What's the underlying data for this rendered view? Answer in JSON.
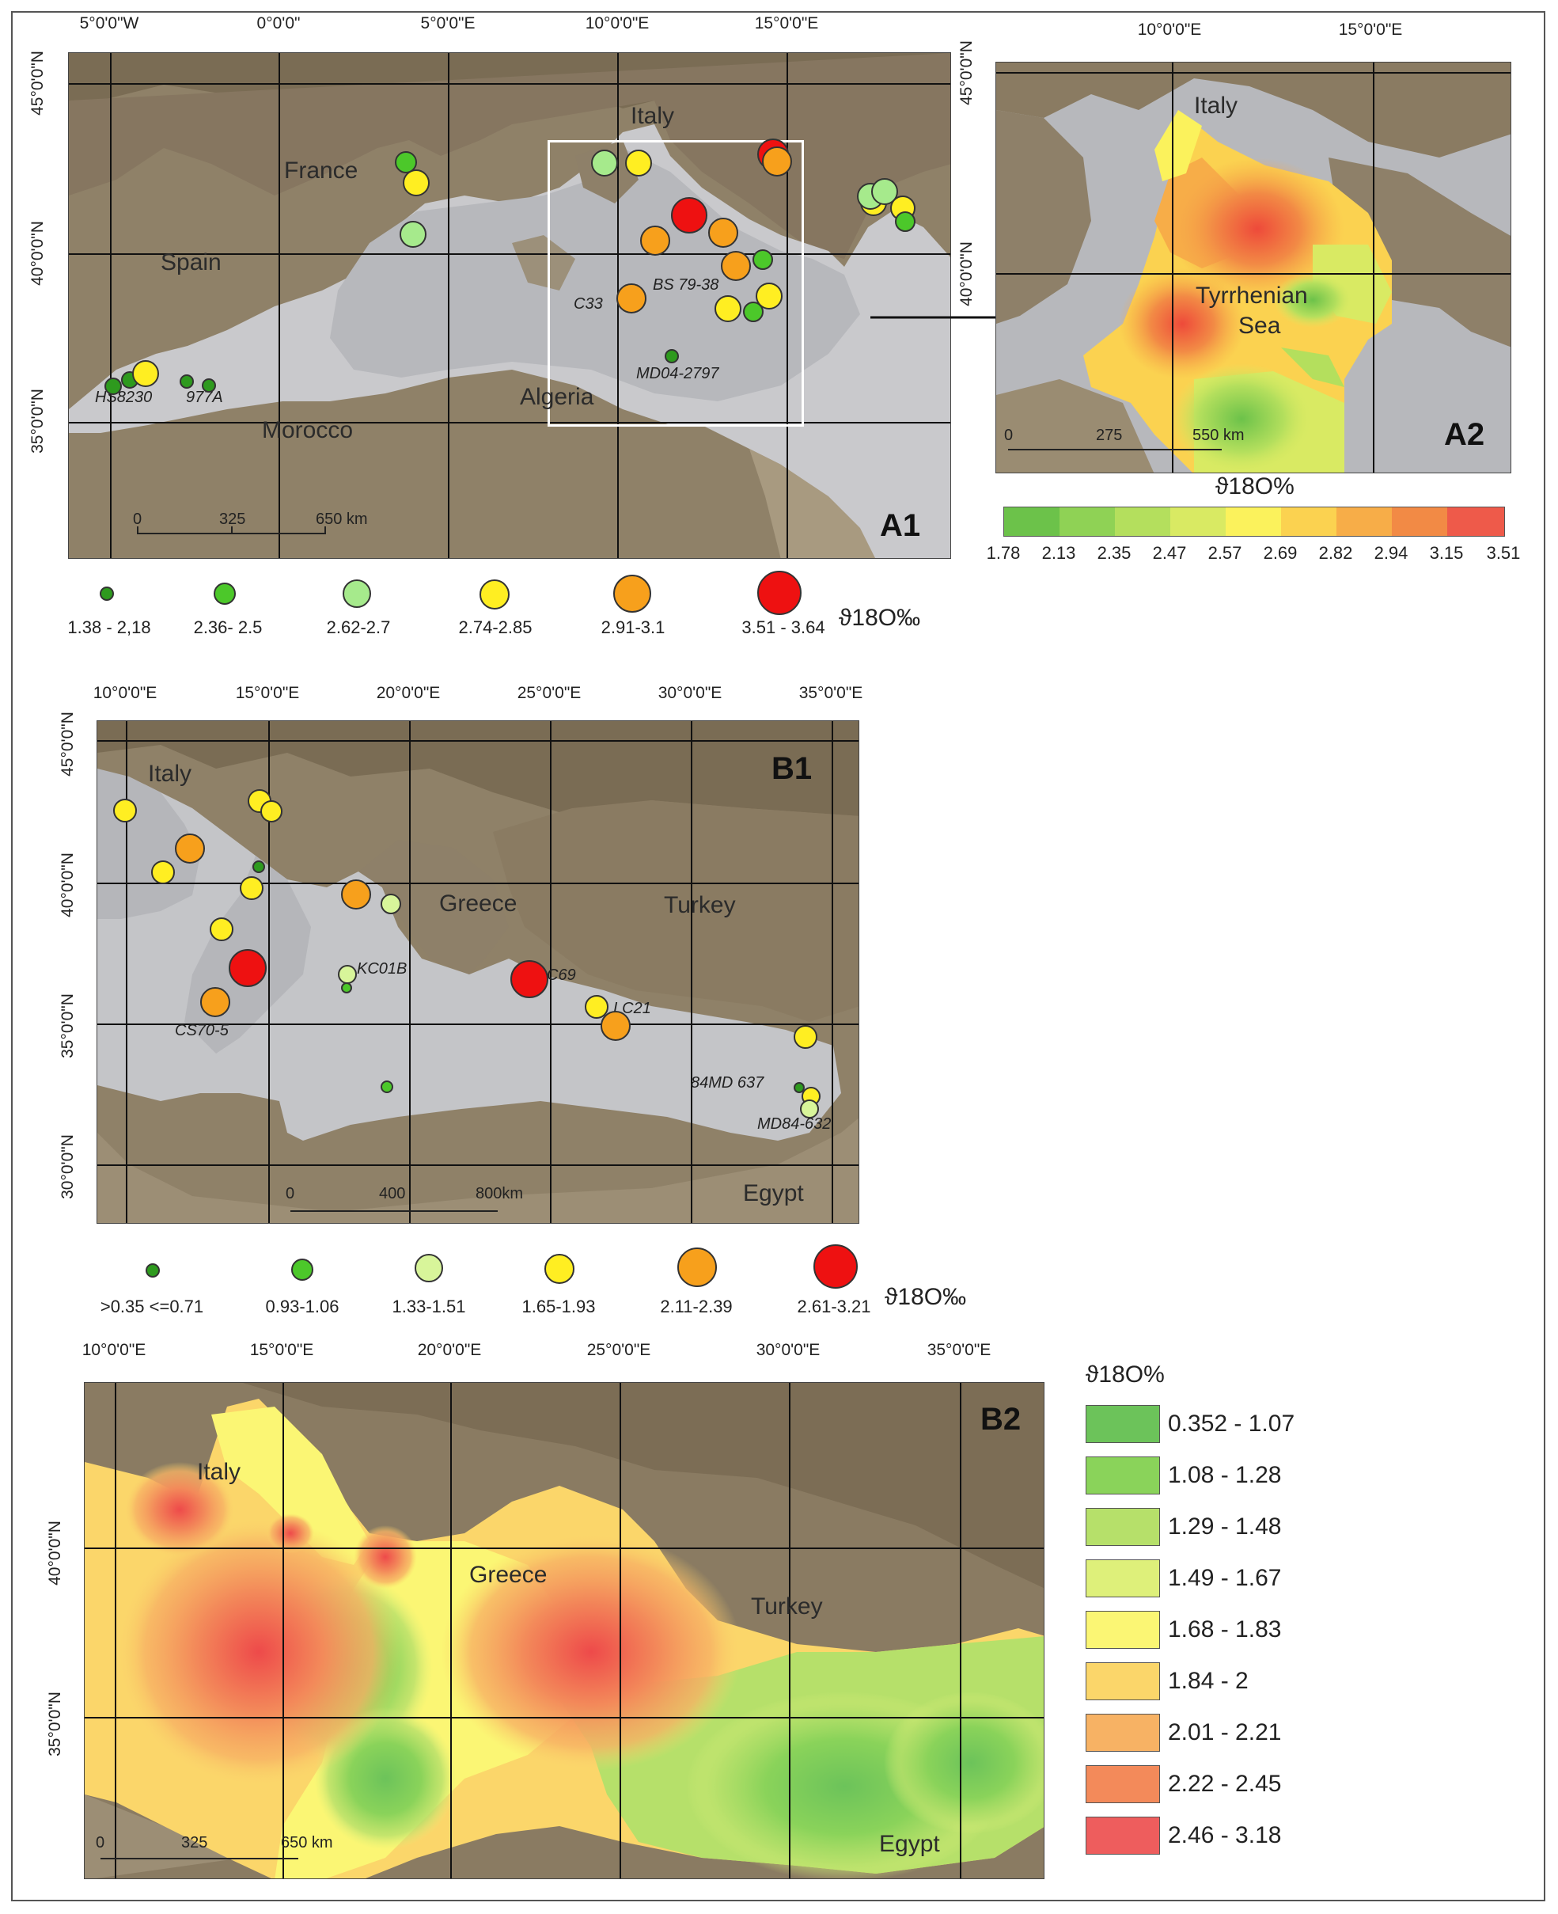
{
  "maps": {
    "a1": {
      "panel": "A1",
      "top_labels": [
        "5°0'0\"W",
        "0°0'0\"",
        "5°0'0\"E",
        "10°0'0\"E",
        "15°0'0\"E"
      ],
      "left_labels": [
        "45°0'0\"N",
        "40°0'0\"N",
        "35°0'0\"N"
      ],
      "places": [
        "Italy",
        "France",
        "Spain",
        "Algeria",
        "Morocco"
      ],
      "cores": [
        "HS8230",
        "977A",
        "MD04-2797",
        "C33",
        "BS 79-38"
      ],
      "scale": [
        "0",
        "325",
        "650 km"
      ]
    },
    "a2": {
      "panel": "A2",
      "top_labels": [
        "10°0'0\"E",
        "15°0'0\"E"
      ],
      "left_labels": [
        "45°0'0\"N",
        "40°0'0\"N"
      ],
      "places": [
        "Italy",
        "Tyrrhenian",
        "Sea"
      ],
      "scale": [
        "0",
        "275",
        "550 km"
      ]
    },
    "b1": {
      "panel": "B1",
      "top_labels": [
        "10°0'0\"E",
        "15°0'0\"E",
        "20°0'0\"E",
        "25°0'0\"E",
        "30°0'0\"E",
        "35°0'0\"E"
      ],
      "left_labels": [
        "45°0'0\"N",
        "40°0'0\"N",
        "35°0'0\"N",
        "30°0'0\"N"
      ],
      "places": [
        "Italy",
        "Greece",
        "Turkey",
        "Egypt"
      ],
      "cores": [
        "KC01B",
        "C69",
        "LC21",
        "CS70-5",
        "84MD 637",
        "MD84-632"
      ],
      "scale": [
        "0",
        "400",
        "800km"
      ]
    },
    "b2": {
      "panel": "B2",
      "top_labels": [
        "10°0'0\"E",
        "15°0'0\"E",
        "20°0'0\"E",
        "25°0'0\"E",
        "30°0'0\"E",
        "35°0'0\"E"
      ],
      "left_labels": [
        "40°0'0\"N",
        "35°0'0\"N"
      ],
      "places": [
        "Italy",
        "Greece",
        "Turkey",
        "Egypt"
      ],
      "scale": [
        "0",
        "325",
        "650 km"
      ]
    }
  },
  "legend_a": {
    "unit": "ϑ18O‰",
    "classes": [
      {
        "label": "1.38 - 2,18",
        "color": "#2e9a1e"
      },
      {
        "label": "2.36- 2.5",
        "color": "#4cc82a"
      },
      {
        "label": "2.62-2.7",
        "color": "#a6ea8c"
      },
      {
        "label": "2.74-2.85",
        "color": "#ffee22"
      },
      {
        "label": "2.91-3.1",
        "color": "#f7a01c"
      },
      {
        "label": "3.51 - 3.64",
        "color": "#ee1111"
      }
    ]
  },
  "ramp_a2": {
    "title": "ϑ18O%",
    "breaks": [
      "1.78",
      "2.13",
      "2.35",
      "2.47",
      "2.57",
      "2.69",
      "2.82",
      "2.94",
      "3.15",
      "3.51"
    ],
    "colors": [
      "#6cc24a",
      "#8fd255",
      "#b4df5d",
      "#d9ea63",
      "#fbf25c",
      "#fbd250",
      "#f7ad48",
      "#f28a45",
      "#ee5a4a"
    ]
  },
  "legend_b": {
    "unit": "ϑ18O‰",
    "classes": [
      {
        "label": ">0.35 <=0.71",
        "color": "#2e9a1e"
      },
      {
        "label": "0.93-1.06",
        "color": "#4cc82a"
      },
      {
        "label": "1.33-1.51",
        "color": "#d8f59a"
      },
      {
        "label": "1.65-1.93",
        "color": "#ffee22"
      },
      {
        "label": "2.11-2.39",
        "color": "#f7a01c"
      },
      {
        "label": "2.61-3.21",
        "color": "#ee1111"
      }
    ]
  },
  "legend_b2": {
    "title": "ϑ18O%",
    "items": [
      {
        "label": "0.352 - 1.07",
        "color": "#6cc35a"
      },
      {
        "label": "1.08 - 1.28",
        "color": "#8ad35a"
      },
      {
        "label": "1.29 - 1.48",
        "color": "#b6e06a"
      },
      {
        "label": "1.49 - 1.67",
        "color": "#def07a"
      },
      {
        "label": "1.68 - 1.83",
        "color": "#fbf674"
      },
      {
        "label": "1.84 - 2",
        "color": "#fbd66a"
      },
      {
        "label": "2.01 - 2.21",
        "color": "#f7b264"
      },
      {
        "label": "2.22 - 2.45",
        "color": "#f38a5a"
      },
      {
        "label": "2.46 - 3.18",
        "color": "#ee5d5d"
      }
    ]
  }
}
